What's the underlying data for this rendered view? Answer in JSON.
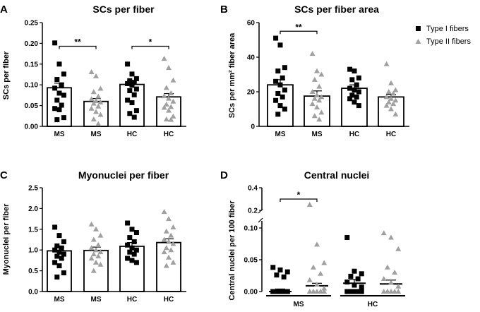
{
  "chart_data": [
    {
      "type": "bar",
      "panel_label": "A",
      "title": "SCs per fiber",
      "ylabel": "SCs per fiber",
      "ylim": [
        0,
        0.25
      ],
      "yticks": [
        "0.00",
        "0.05",
        "0.10",
        "0.15",
        "0.20",
        "0.25"
      ],
      "ytick_values": [
        0,
        0.05,
        0.1,
        0.15,
        0.2,
        0.25
      ],
      "categories": [
        "MS",
        "MS",
        "HC",
        "HC"
      ],
      "fiber_type": [
        "Type I",
        "Type II",
        "Type I",
        "Type II"
      ],
      "values": [
        0.093,
        0.06,
        0.101,
        0.071
      ],
      "sem": [
        0.011,
        0.007,
        0.009,
        0.008
      ],
      "points": [
        [
          0.201,
          0.15,
          0.126,
          0.113,
          0.1,
          0.092,
          0.08,
          0.075,
          0.063,
          0.051,
          0.043,
          0.04,
          0.021,
          0.016
        ],
        [
          0.131,
          0.121,
          0.091,
          0.083,
          0.072,
          0.066,
          0.061,
          0.058,
          0.055,
          0.048,
          0.043,
          0.035,
          0.028,
          0.017,
          0.006
        ],
        [
          0.15,
          0.126,
          0.115,
          0.11,
          0.106,
          0.103,
          0.099,
          0.09,
          0.086,
          0.076,
          0.063,
          0.057,
          0.038,
          0.031,
          0.022
        ],
        [
          0.163,
          0.141,
          0.111,
          0.093,
          0.08,
          0.073,
          0.067,
          0.06,
          0.053,
          0.047,
          0.045,
          0.038,
          0.024,
          0.017,
          0.016
        ]
      ],
      "brackets": [
        {
          "from": 0,
          "to": 1,
          "label": "**",
          "y": 0.193
        },
        {
          "from": 2,
          "to": 3,
          "label": "*",
          "y": 0.193
        }
      ]
    },
    {
      "type": "bar",
      "panel_label": "B",
      "title": "SCs per fiber area",
      "ylabel": "SCs per mm² fiber area",
      "ylim": [
        0,
        60
      ],
      "yticks": [
        "0",
        "20",
        "40",
        "60"
      ],
      "ytick_values": [
        0,
        20,
        40,
        60
      ],
      "categories": [
        "MS",
        "MS",
        "HC",
        "HC"
      ],
      "fiber_type": [
        "Type I",
        "Type II",
        "Type I",
        "Type II"
      ],
      "values": [
        24,
        17.5,
        22,
        17
      ],
      "sem": [
        3,
        3,
        2,
        1.5
      ],
      "points": [
        [
          51,
          47,
          34,
          32,
          28,
          26,
          24,
          21,
          19,
          17,
          15,
          12,
          10,
          7
        ],
        [
          42,
          32,
          30,
          27,
          23,
          20,
          18,
          17,
          16,
          15,
          13,
          11,
          8,
          6,
          4
        ],
        [
          33,
          32,
          28,
          27,
          24,
          22,
          21,
          20,
          18,
          17,
          16,
          14,
          12
        ],
        [
          36,
          25,
          21,
          20,
          19,
          17,
          16,
          15,
          14,
          13,
          12,
          10,
          7
        ]
      ],
      "brackets": [
        {
          "from": 0,
          "to": 1,
          "label": "**",
          "y": 55
        }
      ],
      "legend": [
        {
          "marker": "square",
          "label": "Type I fibers",
          "color": "#000000"
        },
        {
          "marker": "triangle",
          "label": "Type II fibers",
          "color": "#a0a0a0"
        }
      ]
    },
    {
      "type": "bar",
      "panel_label": "C",
      "title": "Myonuclei per fiber",
      "ylabel": "Myonuclei per fiber",
      "ylim": [
        0,
        2.5
      ],
      "yticks": [
        "0.0",
        "0.5",
        "1.0",
        "1.5",
        "2.0",
        "2.5"
      ],
      "ytick_values": [
        0,
        0.5,
        1,
        1.5,
        2,
        2.5
      ],
      "categories": [
        "MS",
        "MS",
        "HC",
        "HC"
      ],
      "fiber_type": [
        "Type I",
        "Type II",
        "Type I",
        "Type II"
      ],
      "values": [
        0.98,
        0.99,
        1.09,
        1.18
      ],
      "sem": [
        0.09,
        0.08,
        0.09,
        0.09
      ],
      "points": [
        [
          1.55,
          1.35,
          1.2,
          1.1,
          1.05,
          1.0,
          0.95,
          0.9,
          0.85,
          0.8,
          0.7,
          0.62,
          0.45,
          0.35
        ],
        [
          1.62,
          1.5,
          1.35,
          1.25,
          1.12,
          1.05,
          1.0,
          0.95,
          0.9,
          0.85,
          0.8,
          0.7,
          0.65,
          0.5
        ],
        [
          1.65,
          1.5,
          1.42,
          1.3,
          1.2,
          1.12,
          1.05,
          1.0,
          0.95,
          0.9,
          0.8,
          0.75,
          0.7
        ],
        [
          1.92,
          1.75,
          1.55,
          1.45,
          1.35,
          1.25,
          1.2,
          1.15,
          1.05,
          1.0,
          0.95,
          0.82,
          0.7,
          0.62
        ]
      ],
      "brackets": []
    },
    {
      "type": "bar",
      "panel_label": "D",
      "title": "Central nuclei",
      "ylabel": "Central nuclei per 100 fiber",
      "axis_break": {
        "lower": [
          0,
          0.1
        ],
        "upper": [
          0.2,
          0.4
        ]
      },
      "yticks": [
        "0.00",
        "0.05",
        "0.10",
        "0.2",
        "0.4"
      ],
      "ytick_values": [
        0,
        0.05,
        0.1,
        0.2,
        0.4
      ],
      "group_labels": [
        "MS",
        "HC"
      ],
      "fiber_type": [
        "Type I",
        "Type II",
        "Type I",
        "Type II"
      ],
      "values": [
        0.0,
        0.009,
        0.013,
        0.012
      ],
      "sem": [
        0.004,
        0.004,
        0.006,
        0.006
      ],
      "points": [
        [
          0.038,
          0.034,
          0.031,
          0.026,
          0.023,
          0.0,
          0.0,
          0.0,
          0.0,
          0.0,
          0.0,
          0.0,
          0.0,
          0.0
        ],
        [
          0.25,
          0.074,
          0.045,
          0.038,
          0.028,
          0.018,
          0.011,
          0.005,
          0.0,
          0.0,
          0.0,
          0.0,
          0.0,
          0.0,
          0.0
        ],
        [
          0.085,
          0.032,
          0.028,
          0.024,
          0.02,
          0.015,
          0.01,
          0.007,
          0.0,
          0.0,
          0.0,
          0.0,
          0.0,
          0.0
        ],
        [
          0.092,
          0.085,
          0.067,
          0.038,
          0.03,
          0.02,
          0.014,
          0.008,
          0.0,
          0.0,
          0.0,
          0.0,
          0.0,
          0.0
        ]
      ],
      "brackets": [
        {
          "from": 0,
          "to": 1,
          "label": "*",
          "y": 0.3
        }
      ]
    }
  ],
  "colors": {
    "type_i": "#000000",
    "type_ii": "#a0a0a0",
    "axis": "#000000"
  }
}
